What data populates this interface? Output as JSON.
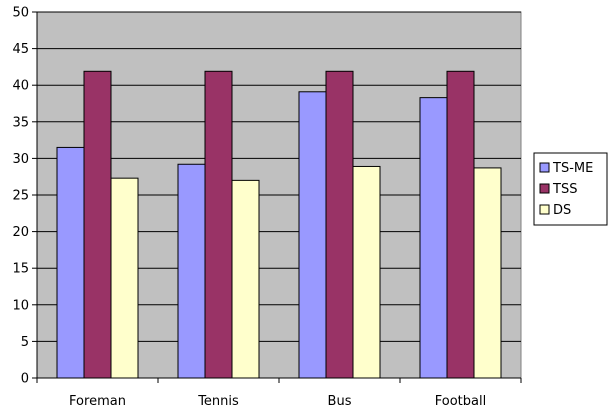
{
  "chart_data": {
    "type": "bar",
    "categories": [
      "Foreman",
      "Tennis",
      "Bus",
      "Football"
    ],
    "series": [
      {
        "name": "TS-ME",
        "values": [
          31.5,
          29.2,
          39.1,
          38.3
        ],
        "color": "#9999ff"
      },
      {
        "name": "TSS",
        "values": [
          41.9,
          41.9,
          41.9,
          41.9
        ],
        "color": "#993366"
      },
      {
        "name": "DS",
        "values": [
          27.3,
          27.0,
          28.9,
          28.7
        ],
        "color": "#ffffcc"
      }
    ],
    "ylim": [
      0,
      50
    ],
    "yticks": [
      0,
      5,
      10,
      15,
      20,
      25,
      30,
      35,
      40,
      45,
      50
    ],
    "plot_background": "#c0c0c0",
    "grid": true,
    "legend_position": "right"
  }
}
